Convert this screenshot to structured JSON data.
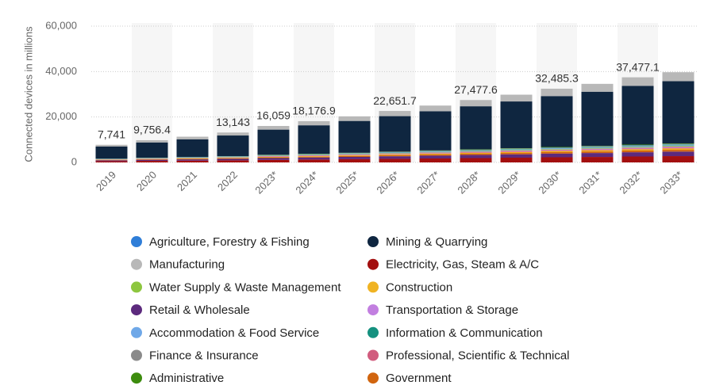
{
  "chart_data": {
    "type": "stacked_bar",
    "y_label": "Connected devices in millions",
    "categories": [
      "2019",
      "2020",
      "2021",
      "2022",
      "2023*",
      "2024*",
      "2025*",
      "2026*",
      "2027*",
      "2028*",
      "2029*",
      "2030*",
      "2031*",
      "2032*",
      "2033*"
    ],
    "totals": [
      7741,
      9756.4,
      null,
      13143,
      16059,
      18176.9,
      null,
      22651.7,
      null,
      27477.6,
      null,
      32485.3,
      null,
      37477.1,
      null
    ],
    "total_labels": [
      "7,741",
      "9,756.4",
      null,
      "13,143",
      "16,059",
      "18,176.9",
      null,
      "22,651.7",
      null,
      "27,477.6",
      null,
      "32,485.3",
      null,
      "37,477.1",
      null
    ],
    "series": [
      {
        "name": "Electricity, Gas, Steam & A/C",
        "color": "#a30f0f",
        "values": [
          540,
          680,
          790,
          920,
          1120,
          1270,
          1420,
          1590,
          1750,
          1920,
          2090,
          2270,
          2420,
          2620,
          2780
        ]
      },
      {
        "name": "Retail & Wholesale",
        "color": "#5c2a7d",
        "values": [
          390,
          490,
          570,
          660,
          800,
          910,
          1020,
          1130,
          1250,
          1370,
          1490,
          1620,
          1730,
          1870,
          1990
        ]
      },
      {
        "name": "Government",
        "color": "#d1650f",
        "values": [
          150,
          200,
          230,
          260,
          320,
          360,
          410,
          450,
          500,
          550,
          600,
          650,
          690,
          750,
          790
        ]
      },
      {
        "name": "Construction",
        "color": "#f0b323",
        "values": [
          120,
          150,
          170,
          200,
          240,
          270,
          300,
          340,
          380,
          410,
          450,
          490,
          520,
          560,
          600
        ]
      },
      {
        "name": "Professional, Scientific & Technical",
        "color": "#d15c7e",
        "values": [
          80,
          100,
          110,
          130,
          160,
          180,
          200,
          230,
          250,
          270,
          300,
          320,
          350,
          370,
          400
        ]
      },
      {
        "name": "Transportation & Storage",
        "color": "#c27fe0",
        "values": [
          80,
          100,
          110,
          130,
          160,
          180,
          200,
          230,
          250,
          270,
          300,
          320,
          350,
          370,
          400
        ]
      },
      {
        "name": "Water Supply & Waste Management",
        "color": "#8dc63f",
        "values": [
          80,
          100,
          110,
          130,
          160,
          180,
          200,
          230,
          250,
          270,
          300,
          320,
          350,
          370,
          400
        ]
      },
      {
        "name": "Agriculture, Forestry & Fishing",
        "color": "#2f7ed8",
        "values": [
          40,
          50,
          60,
          70,
          80,
          90,
          100,
          110,
          130,
          140,
          150,
          160,
          170,
          190,
          200
        ]
      },
      {
        "name": "Accommodation & Food Service",
        "color": "#6fa8e8",
        "values": [
          40,
          50,
          60,
          70,
          80,
          90,
          100,
          110,
          130,
          140,
          150,
          160,
          170,
          190,
          200
        ]
      },
      {
        "name": "Information & Communication",
        "color": "#15917f",
        "values": [
          40,
          50,
          60,
          70,
          80,
          90,
          100,
          110,
          130,
          140,
          150,
          160,
          170,
          190,
          200
        ]
      },
      {
        "name": "Finance & Insurance",
        "color": "#8a8a8a",
        "values": [
          40,
          50,
          60,
          70,
          80,
          90,
          100,
          110,
          130,
          140,
          150,
          160,
          170,
          190,
          200
        ]
      },
      {
        "name": "Administrative",
        "color": "#3d8c0e",
        "values": [
          40,
          50,
          60,
          70,
          80,
          90,
          100,
          110,
          130,
          140,
          150,
          160,
          170,
          190,
          200
        ]
      },
      {
        "name": "Mining & Quarrying",
        "color": "#0f2640",
        "values": [
          5340,
          6730,
          7800,
          9070,
          11080,
          12540,
          14010,
          15630,
          17250,
          18960,
          20560,
          22420,
          23870,
          25860,
          27390
        ]
      },
      {
        "name": "Manufacturing",
        "color": "#b8b8b8",
        "values": [
          770,
          980,
          1130,
          1310,
          1610,
          1820,
          2030,
          2270,
          2500,
          2750,
          2980,
          3250,
          3460,
          3750,
          3970
        ]
      }
    ],
    "ylim": [
      0,
      60000
    ],
    "yticks": [
      0,
      {
        "value": 20000,
        "label": "20,000"
      },
      {
        "value": 40000,
        "label": "40,000"
      },
      {
        "value": 60000,
        "label": "60,000"
      }
    ],
    "grid": true
  }
}
